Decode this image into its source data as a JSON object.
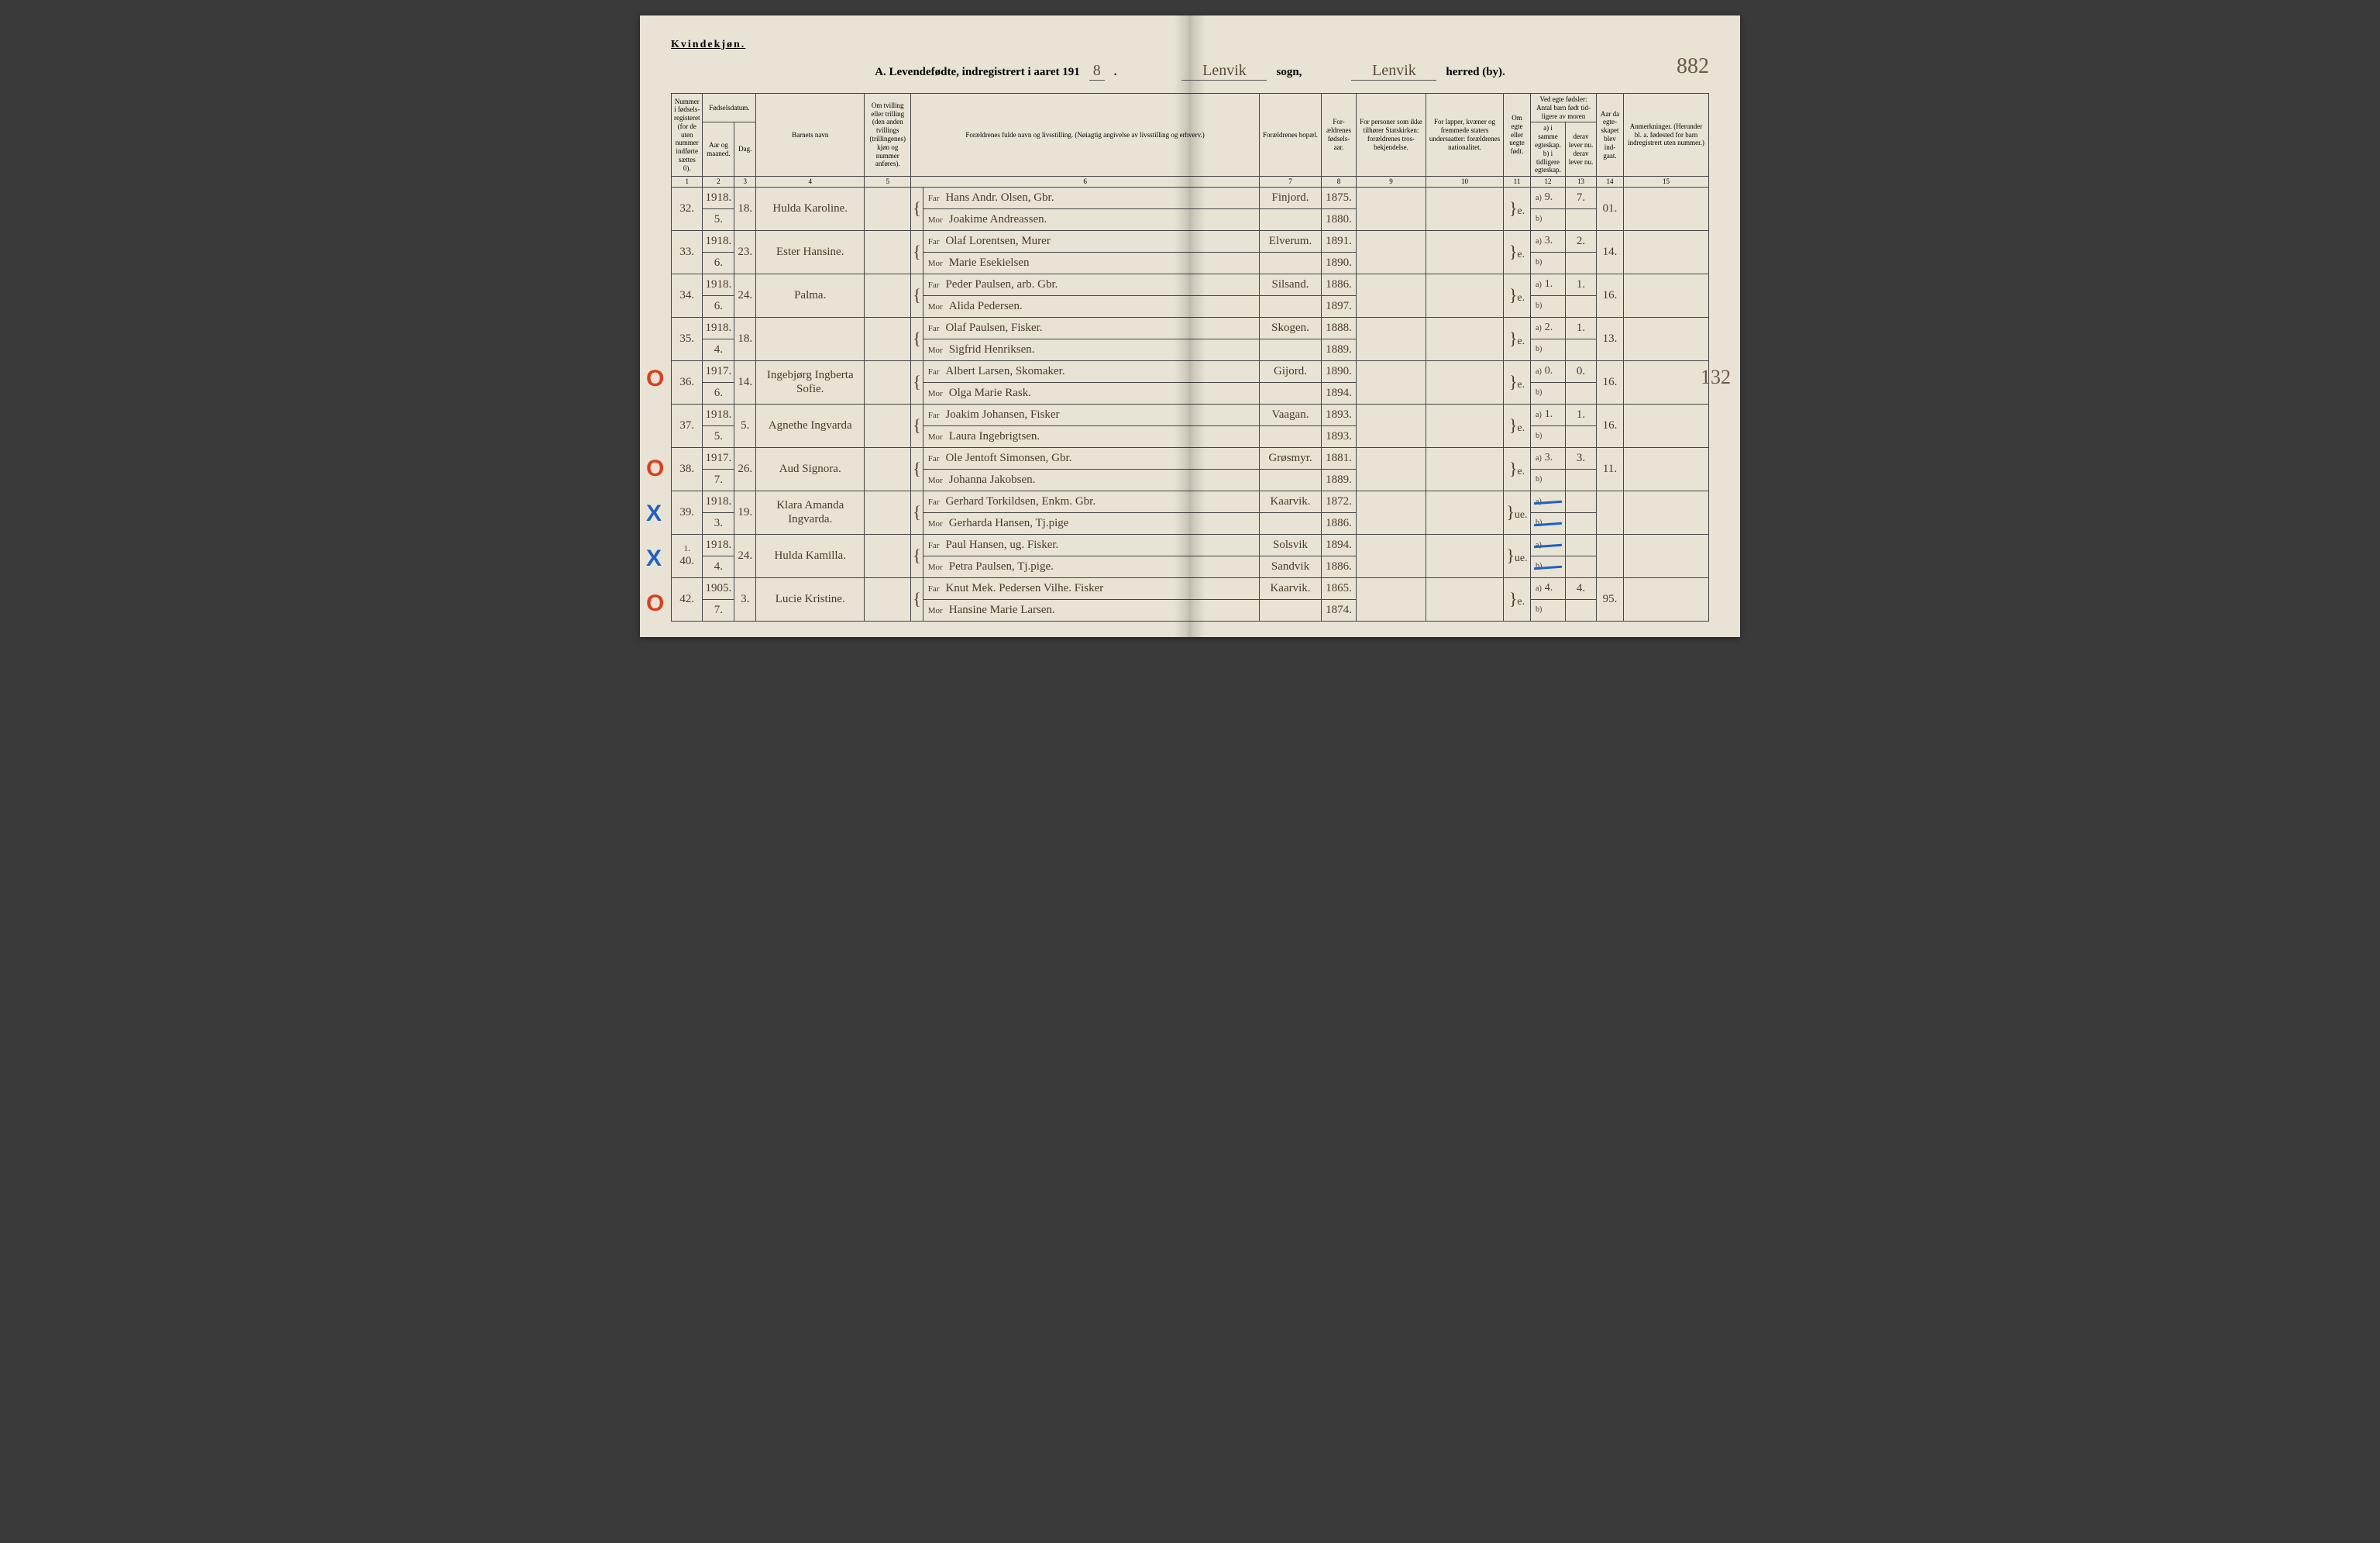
{
  "header": {
    "gender_label": "Kvindekjøn.",
    "title_prefix": "A. Levendefødte, indregistrert i aaret 191",
    "year_suffix": "8",
    "sogn_value": "Lenvik",
    "sogn_label": "sogn,",
    "herred_value": "Lenvik",
    "herred_label": "herred (by).",
    "page_number": "882"
  },
  "columns": {
    "c1": "Nummer i fødsels-registeret (for de uten nummer indførte sættes 0).",
    "c2_group": "Fødselsdatum.",
    "c2a": "Aar og maaned.",
    "c2b": "Dag.",
    "c4": "Barnets navn",
    "c5": "Om tvilling eller trilling (den anden tvillings (trillingenes) kjøn og nummer anføres).",
    "c6": "Forældrenes fulde navn og livsstilling. (Nøiagtig angivelse av livsstilling og erhverv.)",
    "c7": "Forældrenes bopæl.",
    "c8": "For-ældrenes fødsels-aar.",
    "c9": "For personer som ikke tilhører Statskirken: forældrenes tros-bekjendelse.",
    "c10": "For lapper, kvæner og fremmede staters undersaatter: forældrenes nationalitet.",
    "c11": "Om egte eller uegte født.",
    "c12_group": "Ved egte fødsler: Antal barn født tid-ligere av moren",
    "c12a": "a) i samme egteskap.",
    "c12a2": "b) i tidligere egteskap.",
    "c13a": "derav lever nu.",
    "c13b": "derav lever nu.",
    "c14": "Aar da egte-skapet blev ind-gaat.",
    "c15": "Anmerkninger. (Herunder bl. a. fødested for barn indregistrert uten nummer.)"
  },
  "colnums": [
    "1",
    "2",
    "3",
    "4",
    "5",
    "6",
    "7",
    "8",
    "9",
    "10",
    "11",
    "12",
    "13",
    "14",
    "15"
  ],
  "rows": [
    {
      "num": "32.",
      "year": "1918.",
      "month": "5.",
      "day": "18.",
      "name": "Hulda Karoline.",
      "far": "Hans Andr. Olsen, Gbr.",
      "mor": "Joakime Andreassen.",
      "bopael": "Finjord.",
      "far_aar": "1875.",
      "mor_aar": "1880.",
      "egte": "e.",
      "a": "9.",
      "derav_a": "7.",
      "aar_egte": "01.",
      "mark": "",
      "margin": ""
    },
    {
      "num": "33.",
      "year": "1918.",
      "month": "6.",
      "day": "23.",
      "name": "Ester Hansine.",
      "far": "Olaf Lorentsen, Murer",
      "mor": "Marie Esekielsen",
      "bopael": "Elverum.",
      "far_aar": "1891.",
      "mor_aar": "1890.",
      "egte": "e.",
      "a": "3.",
      "derav_a": "2.",
      "aar_egte": "14.",
      "mark": "",
      "margin": ""
    },
    {
      "num": "34.",
      "year": "1918.",
      "month": "6.",
      "day": "24.",
      "name": "Palma.",
      "far": "Peder Paulsen, arb. Gbr.",
      "mor": "Alida Pedersen.",
      "bopael": "Silsand.",
      "far_aar": "1886.",
      "mor_aar": "1897.",
      "egte": "e.",
      "a": "1.",
      "derav_a": "1.",
      "aar_egte": "16.",
      "mark": "",
      "margin": ""
    },
    {
      "num": "35.",
      "year": "1918.",
      "month": "4.",
      "day": "18.",
      "name": "",
      "far": "Olaf Paulsen, Fisker.",
      "mor": "Sigfrid Henriksen.",
      "bopael": "Skogen.",
      "far_aar": "1888.",
      "mor_aar": "1889.",
      "egte": "e.",
      "a": "2.",
      "derav_a": "1.",
      "aar_egte": "13.",
      "mark": "",
      "margin": ""
    },
    {
      "num": "36.",
      "year": "1917.",
      "month": "6.",
      "day": "14.",
      "name": "Ingebjørg Ingberta Sofie.",
      "far": "Albert Larsen, Skomaker.",
      "mor": "Olga Marie Rask.",
      "bopael": "Gijord.",
      "far_aar": "1890.",
      "mor_aar": "1894.",
      "egte": "e.",
      "a": "0.",
      "derav_a": "0.",
      "aar_egte": "16.",
      "mark": "O",
      "margin": "132"
    },
    {
      "num": "37.",
      "year": "1918.",
      "month": "5.",
      "day": "5.",
      "name": "Agnethe Ingvarda",
      "far": "Joakim Johansen, Fisker",
      "mor": "Laura Ingebrigtsen.",
      "bopael": "Vaagan.",
      "far_aar": "1893.",
      "mor_aar": "1893.",
      "egte": "e.",
      "a": "1.",
      "derav_a": "1.",
      "aar_egte": "16.",
      "mark": "",
      "margin": ""
    },
    {
      "num": "38.",
      "year": "1917.",
      "month": "7.",
      "day": "26.",
      "name": "Aud Signora.",
      "far": "Ole Jentoft Simonsen, Gbr.",
      "mor": "Johanna Jakobsen.",
      "bopael": "Grøsmyr.",
      "far_aar": "1881.",
      "mor_aar": "1889.",
      "egte": "e.",
      "a": "3.",
      "derav_a": "3.",
      "aar_egte": "11.",
      "mark": "O",
      "margin": ""
    },
    {
      "num": "39.",
      "year": "1918.",
      "month": "3.",
      "day": "19.",
      "name": "Klara Amanda Ingvarda.",
      "far": "Gerhard Torkildsen, Enkm. Gbr.",
      "mor": "Gerharda Hansen, Tj.pige",
      "bopael": "Kaarvik.",
      "far_aar": "1872.",
      "mor_aar": "1886.",
      "egte": "ue.",
      "a": "",
      "derav_a": "",
      "aar_egte": "",
      "mark": "X",
      "margin": "",
      "strike": true
    },
    {
      "num": "40.",
      "num_prefix": "1.",
      "year": "1918.",
      "month": "4.",
      "day": "24.",
      "name": "Hulda Kamilla.",
      "far": "Paul Hansen, ug. Fisker.",
      "mor": "Petra Paulsen, Tj.pige.",
      "bopael": "Solsvik",
      "bopael2": "Sandvik",
      "far_aar": "1894.",
      "mor_aar": "1886.",
      "egte": "ue.",
      "a": "",
      "derav_a": "",
      "aar_egte": "",
      "mark": "X",
      "margin": "",
      "strike": true
    },
    {
      "num": "42.",
      "year": "1905.",
      "month": "7.",
      "day": "3.",
      "name": "Lucie Kristine.",
      "far": "Knut Mek. Pedersen Vilhe. Fisker",
      "mor": "Hansine Marie Larsen.",
      "bopael": "Kaarvik.",
      "far_aar": "1865.",
      "mor_aar": "1874.",
      "egte": "e.",
      "a": "4.",
      "derav_a": "4.",
      "aar_egte": "95.",
      "mark": "O",
      "margin": ""
    }
  ],
  "labels": {
    "far": "Far",
    "mor": "Mor",
    "a": "a)",
    "b": "b)"
  }
}
